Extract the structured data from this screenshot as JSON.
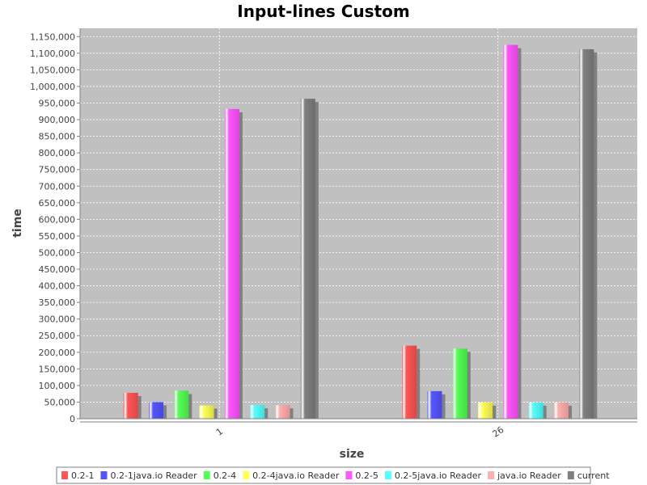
{
  "chart_data": {
    "type": "bar",
    "title": "Input-lines Custom",
    "xlabel": "size",
    "ylabel": "time",
    "categories": [
      "1",
      "26"
    ],
    "ylim": [
      0,
      1175000
    ],
    "yticks": [
      0,
      50000,
      100000,
      150000,
      200000,
      250000,
      300000,
      350000,
      400000,
      450000,
      500000,
      550000,
      600000,
      650000,
      700000,
      750000,
      800000,
      850000,
      900000,
      950000,
      1000000,
      1050000,
      1100000,
      1150000
    ],
    "ytick_labels": [
      "0",
      "50,000",
      "100,000",
      "150,000",
      "200,000",
      "250,000",
      "300,000",
      "350,000",
      "400,000",
      "450,000",
      "500,000",
      "550,000",
      "600,000",
      "650,000",
      "700,000",
      "750,000",
      "800,000",
      "850,000",
      "900,000",
      "950,000",
      "1,000,000",
      "1,050,000",
      "1,100,000",
      "1,150,000"
    ],
    "grid": true,
    "legend_position": "bottom",
    "plot_background": "#c0c0c0",
    "series": [
      {
        "name": "0.2-1",
        "color": "#ff5555",
        "values": [
          78000,
          220000
        ]
      },
      {
        "name": "0.2-1java.io Reader",
        "color": "#5555ff",
        "values": [
          50000,
          83000
        ]
      },
      {
        "name": "0.2-4",
        "color": "#55ff55",
        "values": [
          84000,
          211000
        ]
      },
      {
        "name": "0.2-4java.io Reader",
        "color": "#ffff55",
        "values": [
          40000,
          49000
        ]
      },
      {
        "name": "0.2-5",
        "color": "#ff55ff",
        "values": [
          932000,
          1125000
        ]
      },
      {
        "name": "0.2-5java.io Reader",
        "color": "#55ffff",
        "values": [
          41000,
          49000
        ]
      },
      {
        "name": "java.io Reader",
        "color": "#ffafaf",
        "values": [
          41000,
          49000
        ]
      },
      {
        "name": "current",
        "color": "#808080",
        "values": [
          963000,
          1112000
        ]
      }
    ]
  }
}
